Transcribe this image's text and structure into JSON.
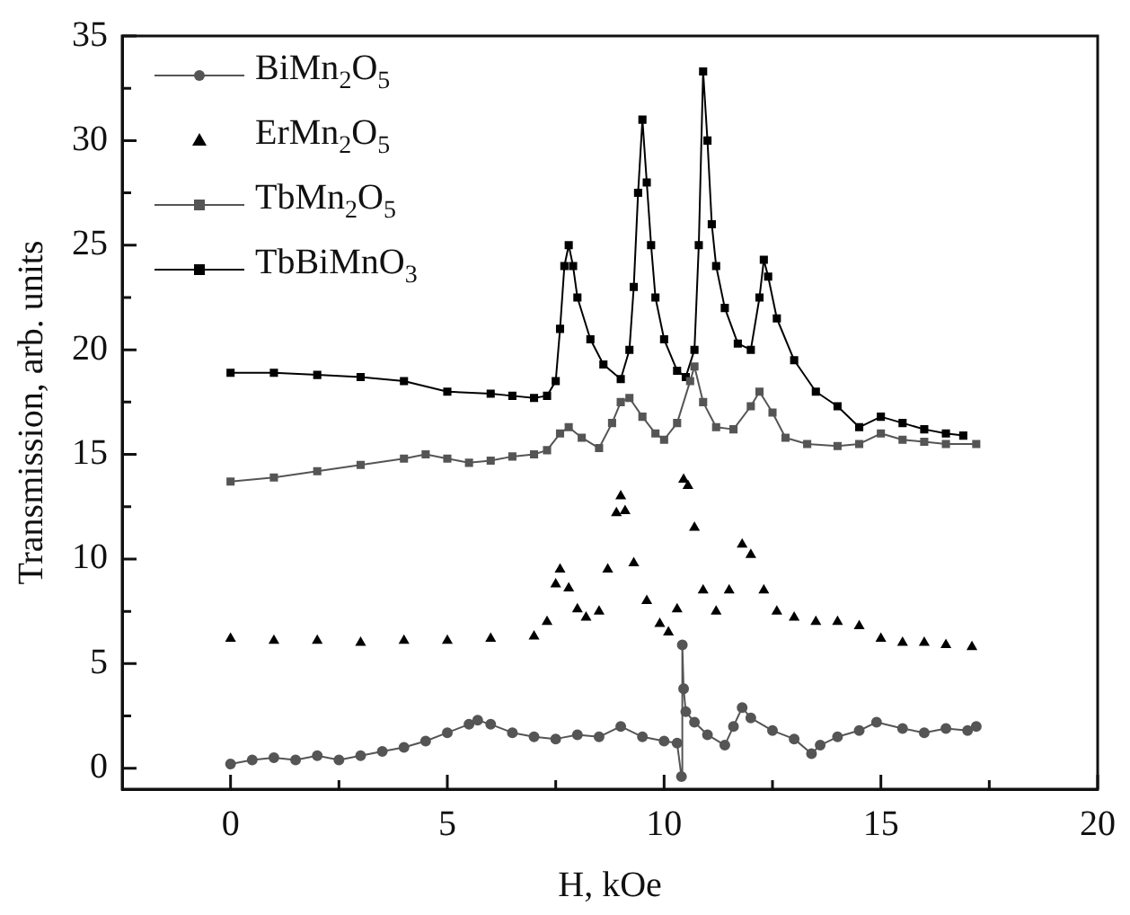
{
  "chart_data": {
    "type": "line",
    "xlabel": "H, kOe",
    "ylabel": "Transmission, arb. units",
    "xlim": [
      -2.5,
      20
    ],
    "ylim": [
      -1,
      35
    ],
    "xticks": [
      0,
      {
        "value": 2.5,
        "label": null
      },
      5,
      {
        "value": 7.5,
        "label": null
      },
      10,
      {
        "value": 12.5,
        "label": null
      },
      15,
      {
        "value": 17.5,
        "label": null
      },
      20
    ],
    "yticks": [
      0,
      {
        "value": 2.5,
        "label": null
      },
      5,
      {
        "value": 7.5,
        "label": null
      },
      10,
      {
        "value": 12.5,
        "label": null
      },
      15,
      {
        "value": 17.5,
        "label": null
      },
      20,
      {
        "value": 22.5,
        "label": null
      },
      25,
      {
        "value": 27.5,
        "label": null
      },
      30,
      {
        "value": 32.5,
        "label": null
      },
      35
    ],
    "grid": false,
    "legend": "top left",
    "line_style": "solid",
    "series": [
      {
        "name": "BiMn$_{2}$O$_{5}$",
        "type": "line",
        "marker": "circle",
        "color": "#555555",
        "x": [
          0,
          0.5,
          1,
          1.5,
          2,
          2.5,
          3,
          3.5,
          4,
          4.5,
          5,
          5.5,
          5.7,
          6,
          6.5,
          7,
          7.5,
          8,
          8.5,
          9,
          9.5,
          10,
          10.3,
          10.4,
          10.42,
          10.45,
          10.5,
          10.7,
          11,
          11.4,
          11.6,
          11.8,
          12,
          12.5,
          13,
          13.4,
          13.6,
          14,
          14.5,
          14.9,
          15.5,
          16,
          16.5,
          17,
          17.2
        ],
        "values": [
          0.2,
          0.4,
          0.5,
          0.4,
          0.6,
          0.4,
          0.6,
          0.8,
          1.0,
          1.3,
          1.7,
          2.1,
          2.3,
          2.1,
          1.7,
          1.5,
          1.4,
          1.6,
          1.5,
          2.0,
          1.5,
          1.3,
          1.2,
          -0.4,
          5.9,
          3.8,
          2.7,
          2.2,
          1.6,
          1.1,
          2.0,
          2.9,
          2.4,
          1.8,
          1.4,
          0.7,
          1.1,
          1.5,
          1.8,
          2.2,
          1.9,
          1.7,
          1.9,
          1.8,
          2.0
        ]
      },
      {
        "name": "ErMn$_{2}$O$_{5}$",
        "type": "scatter",
        "marker": "triangle",
        "color": "#000000",
        "x": [
          0,
          1,
          2,
          3,
          4,
          5,
          6,
          7,
          7.3,
          7.5,
          7.6,
          7.8,
          8.0,
          8.2,
          8.5,
          8.7,
          8.9,
          9.0,
          9.1,
          9.3,
          9.6,
          9.9,
          10.1,
          10.3,
          10.45,
          10.55,
          10.7,
          10.9,
          11.2,
          11.5,
          11.8,
          12.0,
          12.3,
          12.6,
          13,
          13.5,
          14,
          14.5,
          15,
          15.5,
          16,
          16.5,
          17.1
        ],
        "values": [
          6.2,
          6.1,
          6.1,
          6.0,
          6.1,
          6.1,
          6.2,
          6.3,
          7.0,
          8.8,
          9.5,
          8.6,
          7.6,
          7.2,
          7.5,
          9.5,
          12.2,
          13.0,
          12.3,
          9.8,
          8.0,
          6.9,
          6.5,
          7.6,
          13.8,
          13.5,
          11.5,
          8.5,
          7.5,
          8.5,
          10.7,
          10.2,
          8.5,
          7.5,
          7.2,
          7.0,
          7.0,
          6.8,
          6.2,
          6.0,
          6.0,
          5.9,
          5.8
        ]
      },
      {
        "name": "TbMn$_{2}$O$_{5}$",
        "type": "line",
        "marker": "square",
        "color": "#555555",
        "x": [
          0,
          1,
          2,
          3,
          4,
          4.5,
          5,
          5.5,
          6,
          6.5,
          7,
          7.3,
          7.6,
          7.8,
          8.1,
          8.5,
          8.8,
          9.0,
          9.2,
          9.5,
          9.8,
          10.0,
          10.3,
          10.6,
          10.7,
          10.9,
          11.2,
          11.6,
          12.0,
          12.2,
          12.5,
          12.8,
          13.3,
          14,
          14.5,
          15,
          15.5,
          16,
          16.5,
          17.2
        ],
        "values": [
          13.7,
          13.9,
          14.2,
          14.5,
          14.8,
          15.0,
          14.8,
          14.6,
          14.7,
          14.9,
          15.0,
          15.2,
          16.0,
          16.3,
          15.8,
          15.3,
          16.5,
          17.5,
          17.7,
          16.8,
          16.0,
          15.7,
          16.5,
          18.5,
          19.2,
          17.5,
          16.3,
          16.2,
          17.3,
          18.0,
          17.0,
          15.8,
          15.5,
          15.4,
          15.5,
          16.0,
          15.7,
          15.6,
          15.5,
          15.5
        ]
      },
      {
        "name": "TbBiMnO$_{3}$",
        "type": "line",
        "marker": "square",
        "color": "#000000",
        "x": [
          0,
          1,
          2,
          3,
          4,
          5,
          6,
          6.5,
          7,
          7.3,
          7.5,
          7.6,
          7.7,
          7.8,
          7.9,
          8.0,
          8.3,
          8.6,
          9.0,
          9.2,
          9.3,
          9.4,
          9.5,
          9.6,
          9.7,
          9.8,
          10.0,
          10.3,
          10.5,
          10.7,
          10.8,
          10.9,
          11.0,
          11.1,
          11.2,
          11.4,
          11.7,
          12.0,
          12.2,
          12.3,
          12.4,
          12.6,
          13,
          13.5,
          14,
          14.5,
          15,
          15.5,
          16,
          16.5,
          16.9
        ],
        "values": [
          18.9,
          18.9,
          18.8,
          18.7,
          18.5,
          18.0,
          17.9,
          17.8,
          17.7,
          17.8,
          18.5,
          21,
          24,
          25,
          24,
          22.5,
          20.5,
          19.3,
          18.6,
          20,
          23,
          27.5,
          31,
          28,
          25,
          22.5,
          20.5,
          19.0,
          18.7,
          20,
          25,
          33.3,
          30,
          26,
          24,
          22,
          20.3,
          20.0,
          22.5,
          24.3,
          23.5,
          21.5,
          19.5,
          18,
          17.3,
          16.3,
          16.8,
          16.5,
          16.2,
          16.0,
          15.9
        ]
      }
    ]
  }
}
